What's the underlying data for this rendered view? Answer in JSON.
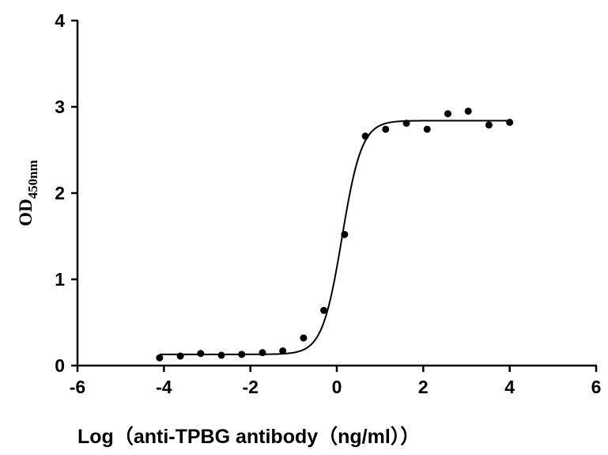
{
  "chart_data": {
    "type": "scatter",
    "title": "",
    "xlabel": "Log（anti-TPBG antibody（ng/ml））",
    "ylabel": "OD",
    "ylabel_subscript": "450nm",
    "xlim": [
      -6,
      6
    ],
    "ylim": [
      0,
      4
    ],
    "xticks": [
      "-6",
      "-4",
      "-2",
      "0",
      "2",
      "4",
      "6"
    ],
    "yticks": [
      "0",
      "1",
      "2",
      "3",
      "4"
    ],
    "grid": false,
    "points": {
      "x": [
        -4.1,
        -3.62,
        -3.15,
        -2.67,
        -2.2,
        -1.72,
        -1.25,
        -0.77,
        -0.3,
        0.18,
        0.66,
        1.13,
        1.61,
        2.09,
        2.57,
        3.04,
        3.52,
        4.0
      ],
      "y": [
        0.09,
        0.11,
        0.14,
        0.12,
        0.13,
        0.15,
        0.17,
        0.32,
        0.64,
        1.52,
        2.66,
        2.74,
        2.81,
        2.74,
        2.92,
        2.95,
        2.79,
        2.82
      ]
    },
    "fit": {
      "model": "4PL sigmoid",
      "bottom": 0.13,
      "top": 2.84,
      "logEC50": 0.12,
      "hill": 1.9,
      "x_range": [
        -4.1,
        4.0
      ]
    },
    "colors": {
      "points": "#000000",
      "curve": "#000000"
    }
  }
}
